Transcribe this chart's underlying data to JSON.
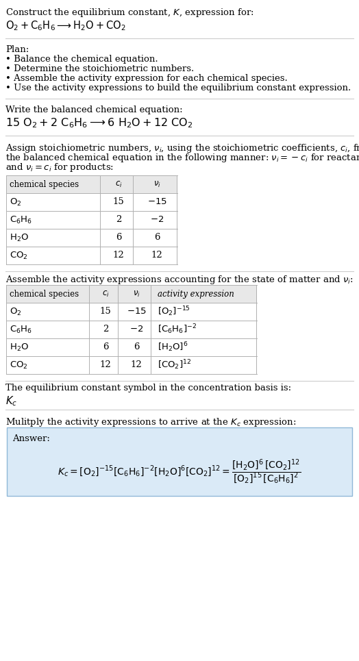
{
  "bg_color": "#ffffff",
  "text_color": "#000000",
  "title_line1": "Construct the equilibrium constant, $K$, expression for:",
  "reaction_unbalanced": "$\\mathrm{O_2 + C_6H_6 \\longrightarrow H_2O + CO_2}$",
  "plan_header": "Plan:",
  "plan_items": [
    "• Balance the chemical equation.",
    "• Determine the stoichiometric numbers.",
    "• Assemble the activity expression for each chemical species.",
    "• Use the activity expressions to build the equilibrium constant expression."
  ],
  "balanced_header": "Write the balanced chemical equation:",
  "balanced_eq": "$\\mathrm{15\\ O_2 + 2\\ C_6H_6 \\longrightarrow 6\\ H_2O + 12\\ CO_2}$",
  "stoich_header_parts": [
    "Assign stoichiometric numbers, $\\nu_i$, using the stoichiometric coefficients, $c_i$, from",
    "the balanced chemical equation in the following manner: $\\nu_i = -c_i$ for reactants",
    "and $\\nu_i = c_i$ for products:"
  ],
  "table1_cols": [
    "chemical species",
    "$c_i$",
    "$\\nu_i$"
  ],
  "table1_rows": [
    [
      "$\\mathrm{O_2}$",
      "15",
      "$-15$"
    ],
    [
      "$\\mathrm{C_6H_6}$",
      "2",
      "$-2$"
    ],
    [
      "$\\mathrm{H_2O}$",
      "6",
      "6"
    ],
    [
      "$\\mathrm{CO_2}$",
      "12",
      "12"
    ]
  ],
  "activity_header": "Assemble the activity expressions accounting for the state of matter and $\\nu_i$:",
  "table2_cols": [
    "chemical species",
    "$c_i$",
    "$\\nu_i$",
    "activity expression"
  ],
  "table2_rows": [
    [
      "$\\mathrm{O_2}$",
      "15",
      "$-15$",
      "$[\\mathrm{O_2}]^{-15}$"
    ],
    [
      "$\\mathrm{C_6H_6}$",
      "2",
      "$-2$",
      "$[\\mathrm{C_6H_6}]^{-2}$"
    ],
    [
      "$\\mathrm{H_2O}$",
      "6",
      "6",
      "$[\\mathrm{H_2O}]^{6}$"
    ],
    [
      "$\\mathrm{CO_2}$",
      "12",
      "12",
      "$[\\mathrm{CO_2}]^{12}$"
    ]
  ],
  "kc_header": "The equilibrium constant symbol in the concentration basis is:",
  "kc_symbol": "$K_c$",
  "multiply_header": "Mulitply the activity expressions to arrive at the $K_c$ expression:",
  "answer_label": "Answer:",
  "answer_box_color": "#daeaf7",
  "answer_box_border": "#90b8d8",
  "table_header_bg": "#e8e8e8",
  "table_row_bg": "#ffffff",
  "table_border": "#b0b0b0",
  "separator_color": "#cccccc",
  "font_size": 9.5
}
